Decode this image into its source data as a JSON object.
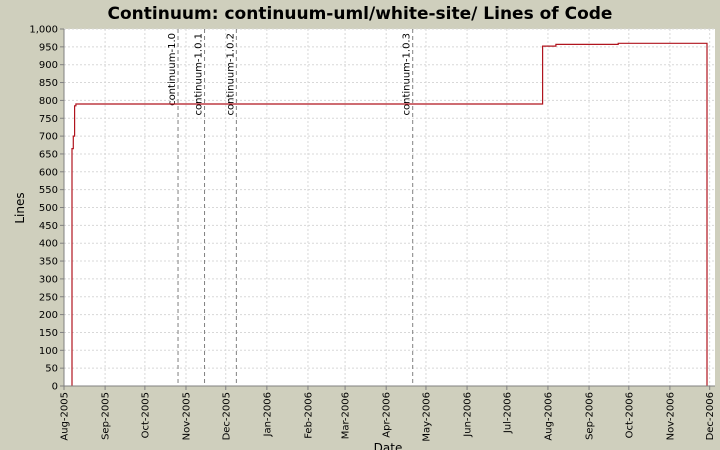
{
  "chart_data": {
    "type": "line",
    "title": "Continuum: continuum-uml/white-site/ Lines of Code",
    "xlabel": "Date",
    "ylabel": "Lines",
    "xlim": [
      "2005-08-01",
      "2006-12-05"
    ],
    "ylim": [
      0,
      1000
    ],
    "yticks": [
      0,
      50,
      100,
      150,
      200,
      250,
      300,
      350,
      400,
      450,
      500,
      550,
      600,
      650,
      700,
      750,
      800,
      850,
      900,
      950,
      1000
    ],
    "ytick_labels": [
      "0",
      "50",
      "100",
      "150",
      "200",
      "250",
      "300",
      "350",
      "400",
      "450",
      "500",
      "550",
      "600",
      "650",
      "700",
      "750",
      "800",
      "850",
      "900",
      "950",
      "1,000"
    ],
    "xticks": [
      "2005-08-01",
      "2005-09-01",
      "2005-10-01",
      "2005-11-01",
      "2005-12-01",
      "2006-01-01",
      "2006-02-01",
      "2006-03-01",
      "2006-04-01",
      "2006-05-01",
      "2006-06-01",
      "2006-07-01",
      "2006-08-01",
      "2006-09-01",
      "2006-10-01",
      "2006-11-01",
      "2006-12-01"
    ],
    "xtick_labels": [
      "Aug-2005",
      "Sep-2005",
      "Oct-2005",
      "Nov-2005",
      "Dec-2005",
      "Jan-2006",
      "Feb-2006",
      "Mar-2006",
      "Apr-2006",
      "May-2006",
      "Jun-2006",
      "Jul-2006",
      "Aug-2006",
      "Sep-2006",
      "Oct-2006",
      "Nov-2006",
      "Dec-2006"
    ],
    "grid": true,
    "line_color": "#b0141e",
    "series": [
      {
        "x": [
          "2005-08-07",
          "2005-08-07",
          "2005-08-08",
          "2005-08-08",
          "2005-08-09",
          "2005-08-09",
          "2005-08-10",
          "2005-08-10",
          "2006-07-28",
          "2006-07-28",
          "2006-08-07",
          "2006-08-07",
          "2006-09-23",
          "2006-09-23",
          "2006-11-29",
          "2006-11-29"
        ],
        "y": [
          0,
          665,
          665,
          700,
          700,
          785,
          785,
          790,
          790,
          952,
          952,
          957,
          957,
          960,
          960,
          0
        ]
      }
    ],
    "markers": [
      {
        "label": "continuum-1.0",
        "date": "2005-10-26"
      },
      {
        "label": "continuum-1.0.1",
        "date": "2005-11-15"
      },
      {
        "label": "continuum-1.0.2",
        "date": "2005-12-09"
      },
      {
        "label": "continuum-1.0.3",
        "date": "2006-04-21"
      }
    ]
  }
}
